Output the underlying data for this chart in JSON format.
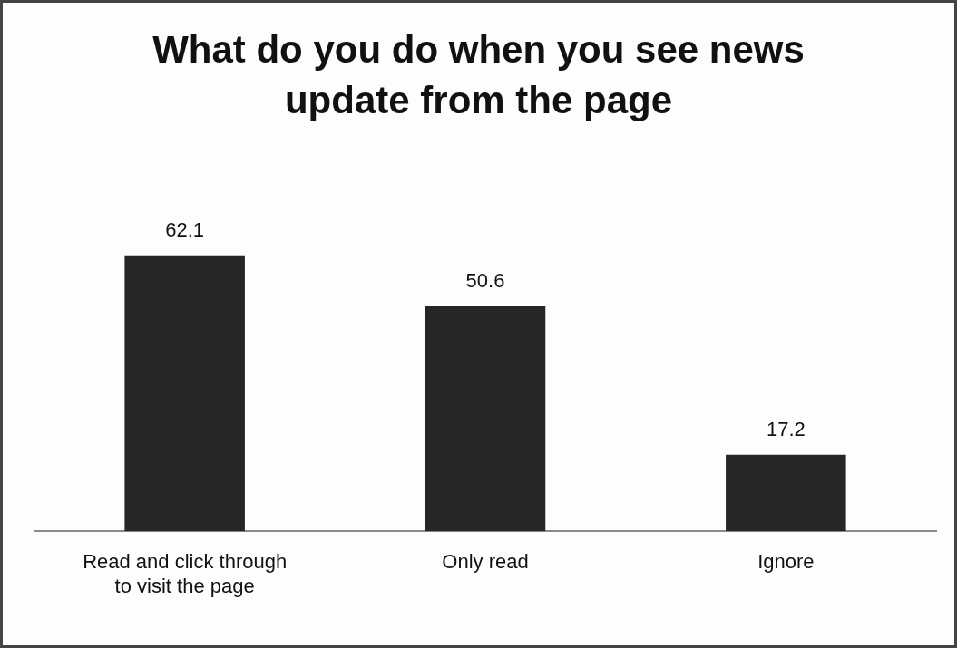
{
  "chart_data": {
    "type": "bar",
    "title": "What do you do when you see news update from the page",
    "categories": [
      "Read and click through to visit the page",
      "Only read",
      "Ignore"
    ],
    "values": [
      62.1,
      50.6,
      17.2
    ],
    "color": "#262626",
    "data_labels": true,
    "grid": false,
    "legend": false
  }
}
